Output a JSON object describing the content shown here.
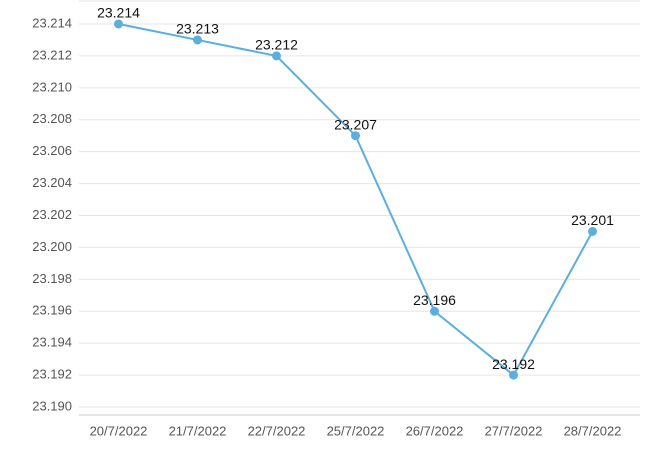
{
  "chart_data": {
    "type": "line",
    "categories": [
      "20/7/2022",
      "21/7/2022",
      "22/7/2022",
      "25/7/2022",
      "26/7/2022",
      "27/7/2022",
      "28/7/2022"
    ],
    "series": [
      {
        "color": "#5aafde",
        "values": [
          23.214,
          23.213,
          23.212,
          23.207,
          23.196,
          23.192,
          23.201
        ]
      }
    ],
    "ylim": [
      23.1895,
      23.2145
    ],
    "yticks": [
      {
        "value": 23.19,
        "label": "23.190"
      },
      23.192,
      23.194,
      23.196,
      23.198,
      {
        "value": 23.2,
        "label": "23.200"
      },
      23.202,
      23.204,
      23.206,
      23.208,
      {
        "value": 23.21,
        "label": "23.210"
      },
      23.212,
      23.214
    ],
    "grid": true
  }
}
